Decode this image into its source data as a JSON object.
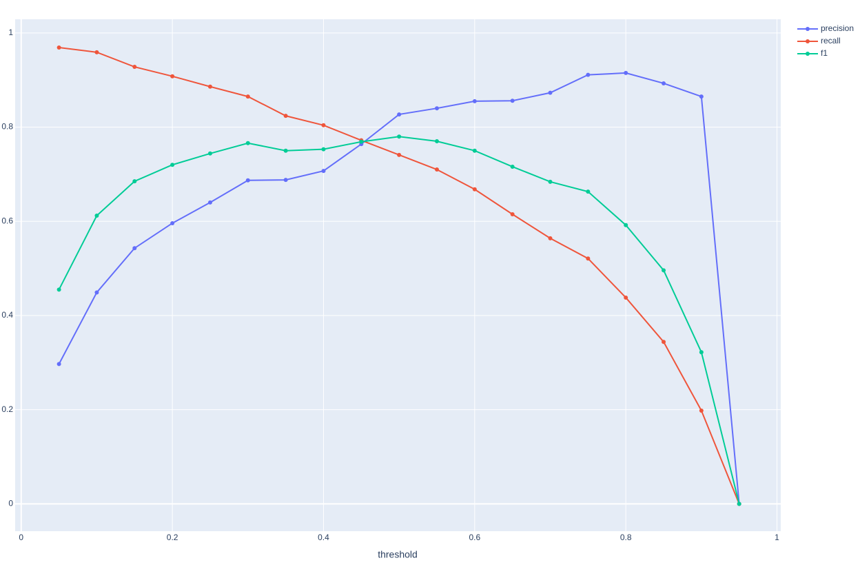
{
  "chart_data": {
    "type": "line",
    "x_label": "threshold",
    "x": [
      0.05,
      0.1,
      0.15,
      0.2,
      0.25,
      0.3,
      0.35,
      0.4,
      0.45,
      0.5,
      0.55,
      0.6,
      0.65,
      0.7,
      0.75,
      0.8,
      0.85,
      0.9,
      0.95
    ],
    "series": [
      {
        "name": "precision",
        "color": "#636efa",
        "values": [
          0.297,
          0.449,
          0.543,
          0.596,
          0.64,
          0.687,
          0.688,
          0.707,
          0.764,
          0.827,
          0.84,
          0.855,
          0.856,
          0.873,
          0.911,
          0.915,
          0.893,
          0.865,
          0
        ]
      },
      {
        "name": "recall",
        "color": "#ef553b",
        "values": [
          0.969,
          0.959,
          0.928,
          0.908,
          0.886,
          0.865,
          0.824,
          0.804,
          0.772,
          0.741,
          0.71,
          0.668,
          0.615,
          0.564,
          0.521,
          0.438,
          0.344,
          0.198,
          0
        ]
      },
      {
        "name": "f1",
        "color": "#00cc96",
        "values": [
          0.455,
          0.612,
          0.685,
          0.72,
          0.744,
          0.766,
          0.75,
          0.753,
          0.769,
          0.78,
          0.77,
          0.75,
          0.716,
          0.684,
          0.663,
          0.592,
          0.496,
          0.322,
          0
        ]
      }
    ],
    "xlim": [
      -0.008,
      1.005
    ],
    "xticks": [
      0,
      0.2,
      0.4,
      0.6,
      0.8,
      1
    ],
    "ylim": [
      -0.058,
      1.029
    ],
    "yticks": [
      0,
      0.2,
      0.4,
      0.6,
      0.8,
      1
    ],
    "grid": true,
    "legend": "top-right"
  }
}
